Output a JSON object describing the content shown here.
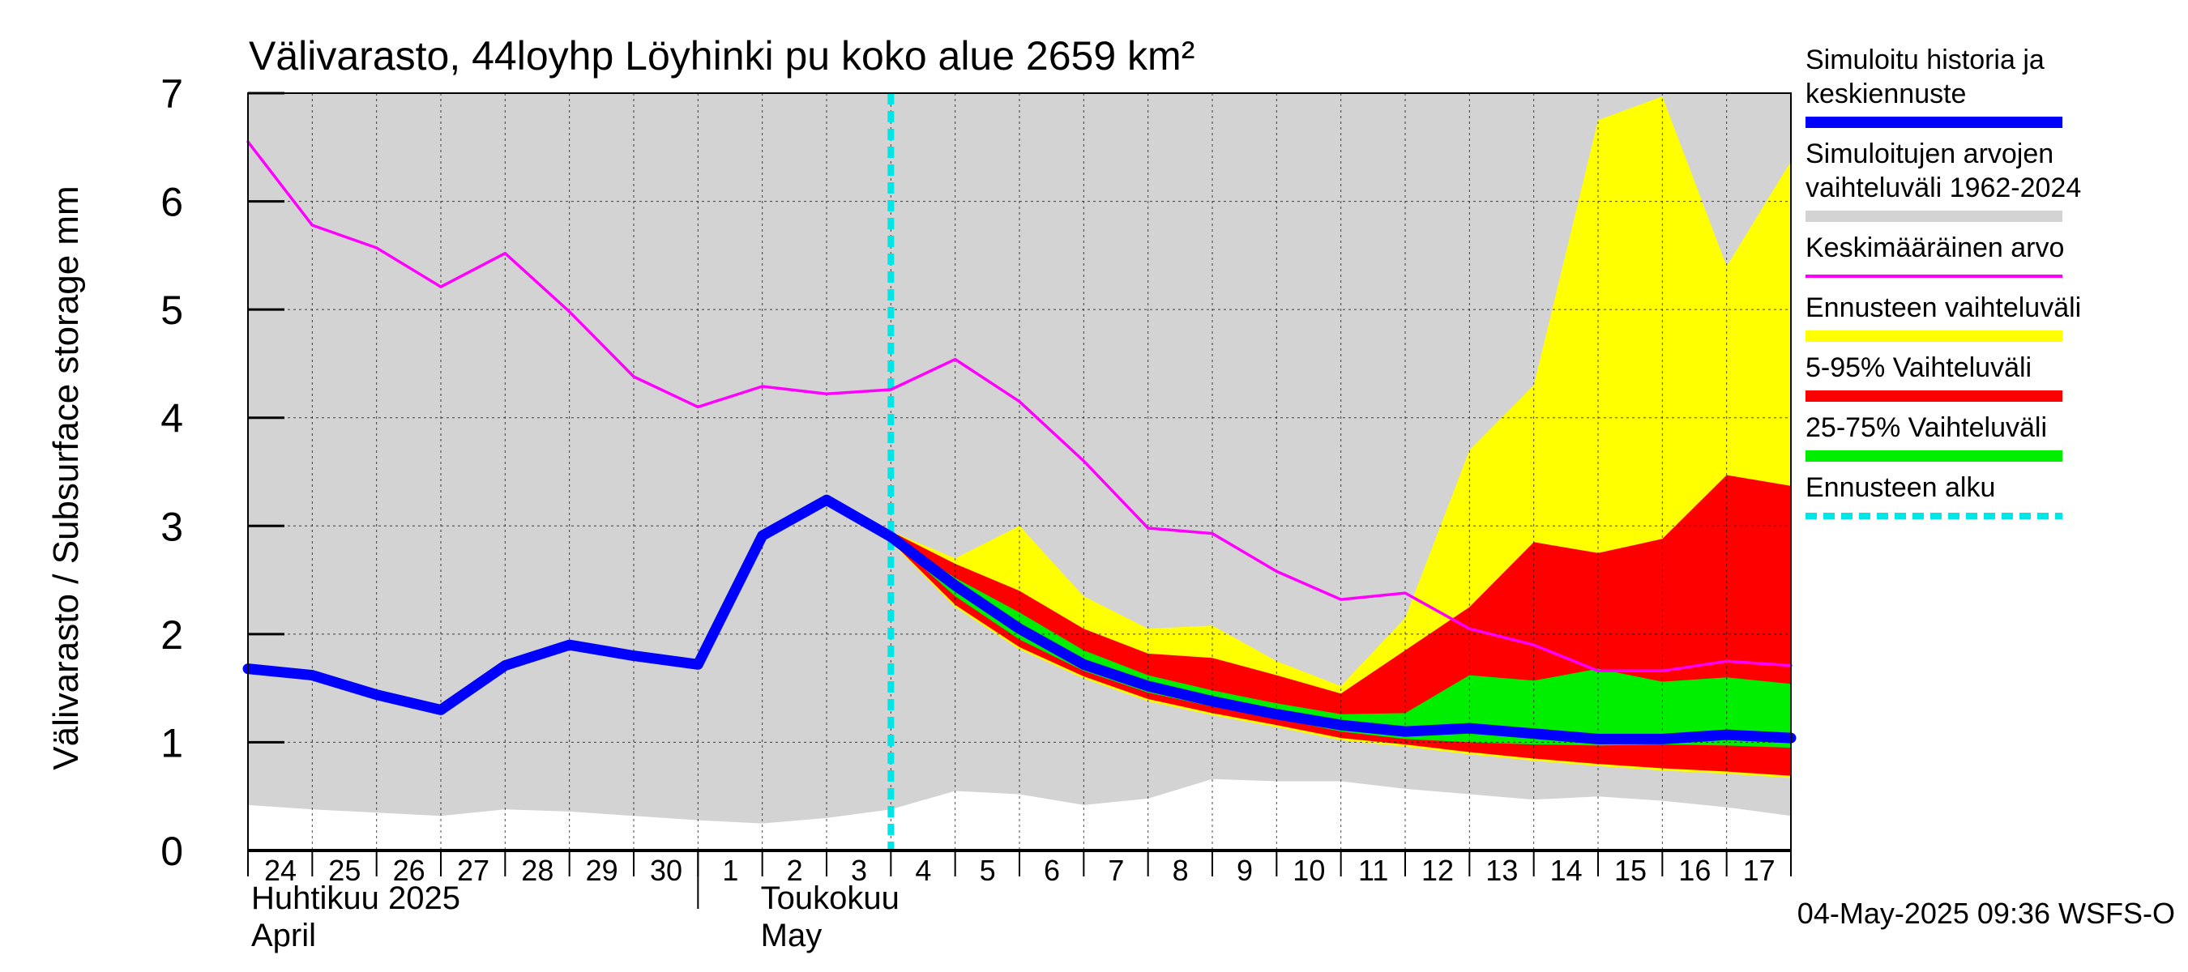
{
  "chart_data": {
    "type": "area",
    "title": "Välivarasto, 44loyhp Löyhinki pu koko alue 2659 km²",
    "ylabel": "Välivarasto / Subsurface storage  mm",
    "ylim": [
      0,
      7
    ],
    "yticks": [
      "0",
      "1",
      "2",
      "3",
      "4",
      "5",
      "6",
      "7"
    ],
    "grid": true,
    "legend_position": "right",
    "x": [
      "2025-04-24",
      "2025-04-25",
      "2025-04-26",
      "2025-04-27",
      "2025-04-28",
      "2025-04-29",
      "2025-04-30",
      "2025-05-01",
      "2025-05-02",
      "2025-05-03",
      "2025-05-04",
      "2025-05-05",
      "2025-05-06",
      "2025-05-07",
      "2025-05-08",
      "2025-05-09",
      "2025-05-10",
      "2025-05-11",
      "2025-05-12",
      "2025-05-13",
      "2025-05-14",
      "2025-05-15",
      "2025-05-16",
      "2025-05-17",
      "2025-05-18"
    ],
    "xtick_labels": [
      "24",
      "25",
      "26",
      "27",
      "28",
      "29",
      "30",
      "1",
      "2",
      "3",
      "4",
      "5",
      "6",
      "7",
      "8",
      "9",
      "10",
      "11",
      "12",
      "13",
      "14",
      "15",
      "16",
      "17"
    ],
    "month_labels": [
      {
        "fi": "Huhtikuu  2025",
        "en": "April"
      },
      {
        "fi": "Toukokuu",
        "en": "May"
      }
    ],
    "forecast_start": "2025-05-04",
    "timestamp": "04-May-2025 09:36 WSFS-O",
    "series": [
      {
        "name": "Simuloitujen arvojen vaihteluväli 1962-2024",
        "color": "#d3d3d3",
        "upper": [
          7,
          7,
          7,
          7,
          7,
          7,
          7,
          7,
          7,
          7,
          7,
          7,
          7,
          7,
          7,
          7,
          7,
          7,
          7,
          7,
          7,
          7,
          7,
          7,
          7
        ],
        "lower": [
          0.42,
          0.38,
          0.35,
          0.32,
          0.38,
          0.36,
          0.32,
          0.28,
          0.25,
          0.3,
          0.38,
          0.55,
          0.52,
          0.42,
          0.48,
          0.66,
          0.64,
          0.64,
          0.57,
          0.52,
          0.47,
          0.5,
          0.46,
          0.4,
          0.32
        ]
      },
      {
        "name": "Ennusteen vaihteluväli",
        "color": "#ffff00",
        "upper": [
          null,
          null,
          null,
          null,
          null,
          null,
          null,
          null,
          null,
          3.2,
          2.95,
          2.7,
          3.0,
          2.35,
          2.05,
          2.08,
          1.75,
          1.52,
          2.15,
          3.7,
          4.3,
          6.75,
          6.97,
          5.4,
          6.37
        ],
        "lower": [
          null,
          null,
          null,
          null,
          null,
          null,
          null,
          null,
          null,
          3.2,
          2.85,
          2.25,
          1.86,
          1.59,
          1.38,
          1.25,
          1.14,
          1.02,
          0.96,
          0.89,
          0.83,
          0.78,
          0.74,
          0.71,
          0.67
        ]
      },
      {
        "name": "5-95% Vaihteluväli",
        "color": "#ff0000",
        "upper": [
          null,
          null,
          null,
          null,
          null,
          null,
          null,
          null,
          null,
          3.2,
          2.95,
          2.65,
          2.4,
          2.05,
          1.82,
          1.78,
          1.62,
          1.45,
          1.85,
          2.25,
          2.85,
          2.75,
          2.88,
          3.47,
          3.37
        ],
        "lower": [
          null,
          null,
          null,
          null,
          null,
          null,
          null,
          null,
          null,
          3.2,
          2.86,
          2.27,
          1.88,
          1.61,
          1.4,
          1.27,
          1.16,
          1.04,
          0.98,
          0.91,
          0.85,
          0.8,
          0.76,
          0.73,
          0.69
        ]
      },
      {
        "name": "25-75% Vaihteluväli",
        "color": "#00ee00",
        "upper": [
          null,
          null,
          null,
          null,
          null,
          null,
          null,
          null,
          null,
          3.2,
          2.92,
          2.52,
          2.2,
          1.85,
          1.62,
          1.48,
          1.36,
          1.26,
          1.27,
          1.62,
          1.57,
          1.68,
          1.56,
          1.6,
          1.54
        ],
        "lower": [
          null,
          null,
          null,
          null,
          null,
          null,
          null,
          null,
          null,
          3.2,
          2.88,
          2.35,
          1.95,
          1.66,
          1.46,
          1.33,
          1.22,
          1.1,
          1.03,
          1.0,
          0.98,
          0.97,
          0.98,
          0.97,
          0.95
        ]
      },
      {
        "name": "Keskimääräinen arvo",
        "color": "#ff00ff",
        "values": [
          6.55,
          5.78,
          5.57,
          5.21,
          5.52,
          4.98,
          4.38,
          4.1,
          4.29,
          4.22,
          4.26,
          4.54,
          4.15,
          3.6,
          2.98,
          2.93,
          2.58,
          2.32,
          2.38,
          2.05,
          1.9,
          1.66,
          1.66,
          1.75,
          1.71
        ]
      },
      {
        "name": "Simuloitu historia ja keskiennuste",
        "color": "#0000ff",
        "values": [
          1.68,
          1.62,
          1.44,
          1.3,
          1.71,
          1.9,
          1.8,
          1.72,
          2.91,
          3.24,
          2.9,
          2.45,
          2.05,
          1.72,
          1.52,
          1.38,
          1.26,
          1.16,
          1.1,
          1.13,
          1.08,
          1.03,
          1.03,
          1.07,
          1.04
        ]
      }
    ]
  },
  "legend": [
    {
      "lines": [
        "Simuloitu historia ja",
        "keskiennuste"
      ],
      "color": "#0000ff",
      "style": "thick"
    },
    {
      "lines": [
        "Simuloitujen arvojen",
        "vaihteluväli 1962-2024"
      ],
      "color": "#d3d3d3",
      "style": "thick"
    },
    {
      "lines": [
        "Keskimääräinen arvo"
      ],
      "color": "#ff00ff",
      "style": "thin"
    },
    {
      "lines": [
        "Ennusteen vaihteluväli"
      ],
      "color": "#ffff00",
      "style": "thick"
    },
    {
      "lines": [
        "5-95% Vaihteluväli"
      ],
      "color": "#ff0000",
      "style": "thick"
    },
    {
      "lines": [
        "25-75% Vaihteluväli"
      ],
      "color": "#00ee00",
      "style": "thick"
    },
    {
      "lines": [
        "Ennusteen alku"
      ],
      "color": "#00e5e5",
      "style": "dashed"
    }
  ]
}
